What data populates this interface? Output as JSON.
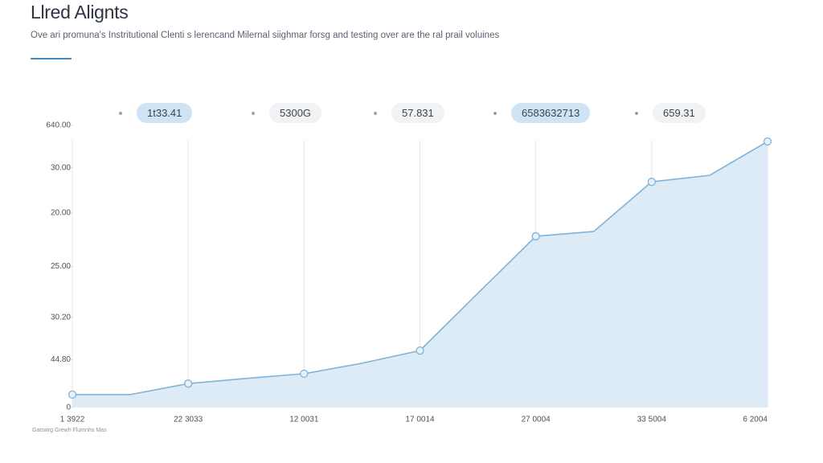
{
  "chart_data": {
    "type": "area",
    "title": "Llred Alignts",
    "subtitle": "Ove ari promuna's Instritutional Clenti s lerencand Milernal siighmar forsg and testing over are the ral prail voluines",
    "annotations": [
      "1t33.41",
      "5300G",
      "57.831",
      "6583632713",
      "659.31"
    ],
    "source": "Gatswrg Grewh Flumnhs Mas",
    "categories": [
      "1 3922",
      null,
      "22 3033",
      null,
      "12 0031",
      null,
      "17 0014",
      null,
      "27 0004",
      null,
      "33 5004",
      null,
      "6 2004"
    ],
    "values": [
      4.6,
      4.6,
      8.5,
      10.3,
      12,
      15.7,
      20.2,
      40.5,
      60.7,
      62.4,
      80,
      82.3,
      94.3
    ],
    "color": "#7fb3d9",
    "fill": "#dcebf6",
    "ylim": [
      0,
      100
    ],
    "yticks": [
      0,
      {
        "value": 17,
        "label": "44.80"
      },
      {
        "value": 32,
        "label": "30.20"
      },
      {
        "value": 50,
        "label": "25.00"
      },
      {
        "value": 69,
        "label": "20.00"
      },
      {
        "value": 85,
        "label": "30.00"
      },
      {
        "value": 100,
        "label": "640.00"
      }
    ],
    "grid": "x"
  }
}
